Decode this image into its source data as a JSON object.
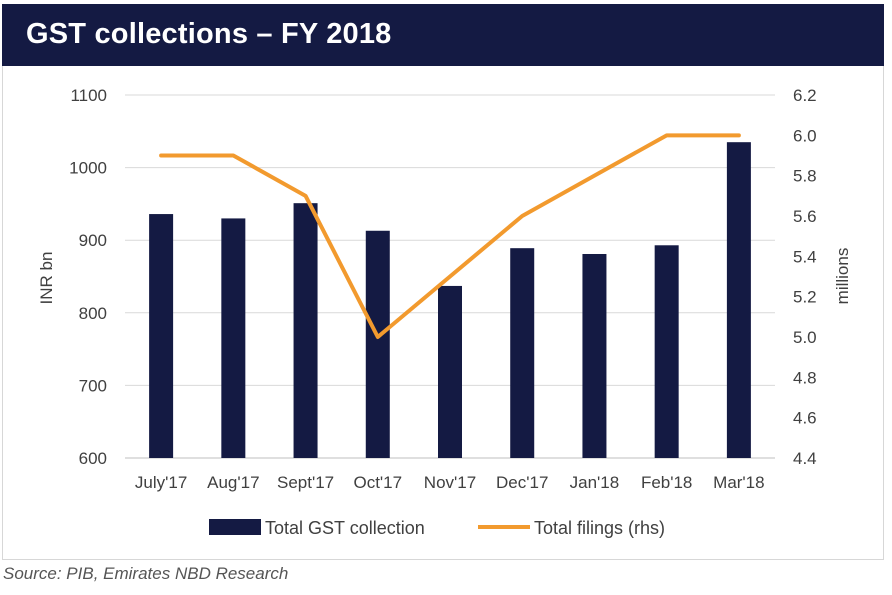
{
  "header": {
    "title": "GST collections – FY 2018"
  },
  "source": "Source: PIB, Emirates NBD Research",
  "colors": {
    "header_bg": "#141a43",
    "bar": "#141a43",
    "line": "#f29a2e",
    "axis": "#bfbfbf",
    "grid": "#d9d9d9",
    "text": "#404040"
  },
  "chart_data": {
    "type": "bar+line",
    "title": "GST collections – FY 2018",
    "categories": [
      "July'17",
      "Aug'17",
      "Sept'17",
      "Oct'17",
      "Nov'17",
      "Dec'17",
      "Jan'18",
      "Feb'18",
      "Mar'18"
    ],
    "series": [
      {
        "name": "Total GST collection",
        "type": "bar",
        "axis": "left",
        "values": [
          936,
          930,
          951,
          913,
          837,
          889,
          881,
          893,
          1035
        ]
      },
      {
        "name": "Total filings (rhs)",
        "type": "line",
        "axis": "right",
        "values": [
          5.9,
          5.9,
          5.7,
          5.0,
          5.3,
          5.6,
          5.8,
          6.0,
          6.0
        ]
      }
    ],
    "ylabel": "INR bn",
    "ylim": [
      600,
      1100
    ],
    "yticks": [
      "600",
      "700",
      "800",
      "900",
      "1000",
      "1100"
    ],
    "y2label": "millions",
    "y2lim": [
      4.4,
      6.2
    ],
    "y2ticks": [
      "4.4",
      "4.6",
      "4.8",
      "5.0",
      "5.2",
      "5.4",
      "5.6",
      "5.8",
      "6.0",
      "6.2"
    ],
    "legend": [
      "Total GST collection",
      "Total filings (rhs)"
    ],
    "legend_position": "bottom-center"
  }
}
